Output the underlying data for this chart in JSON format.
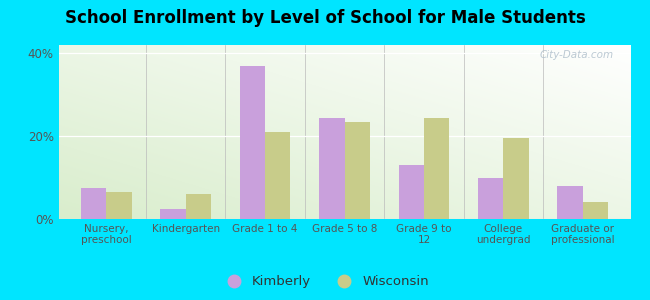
{
  "title": "School Enrollment by Level of School for Male Students",
  "categories": [
    "Nursery,\npreschool",
    "Kindergarten",
    "Grade 1 to 4",
    "Grade 5 to 8",
    "Grade 9 to\n12",
    "College\nundergrad",
    "Graduate or\nprofessional"
  ],
  "kimberly": [
    7.5,
    2.5,
    37.0,
    24.5,
    13.0,
    10.0,
    8.0
  ],
  "wisconsin": [
    6.5,
    6.0,
    21.0,
    23.5,
    24.5,
    19.5,
    4.0
  ],
  "kimberly_color": "#c9a0dc",
  "wisconsin_color": "#c8cc8a",
  "background_outer": "#00e5ff",
  "ylim": [
    0,
    42
  ],
  "yticks": [
    0,
    20,
    40
  ],
  "ytick_labels": [
    "0%",
    "20%",
    "40%"
  ],
  "watermark": "City-Data.com",
  "legend_kimberly": "Kimberly",
  "legend_wisconsin": "Wisconsin",
  "bar_width": 0.32,
  "title_fontsize": 12
}
